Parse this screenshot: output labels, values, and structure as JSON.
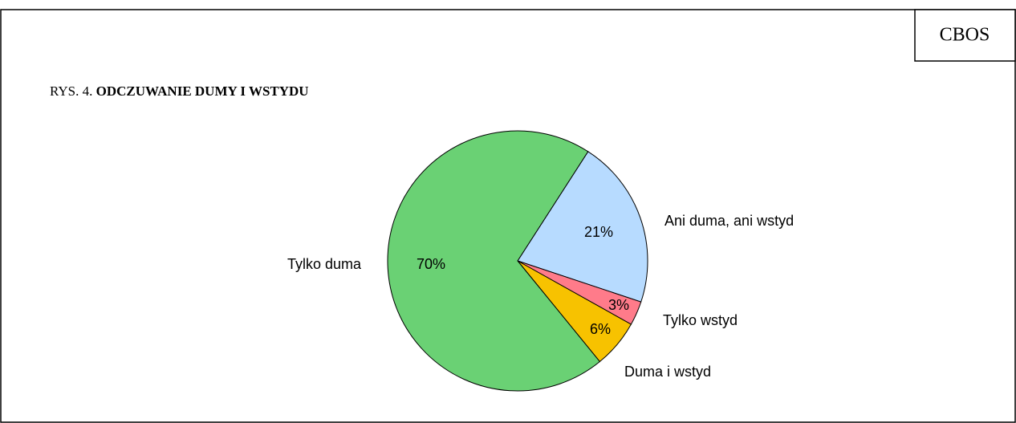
{
  "chart_data": {
    "type": "pie",
    "source": "CBOS",
    "title_prefix": "RYS. 4.",
    "title": "ODCZUWANIE DUMY I WSTYDU",
    "categories": [
      "Ani duma, ani wstyd",
      "Tylko wstyd",
      "Duma i wstyd",
      "Tylko duma"
    ],
    "values": [
      21,
      3,
      6,
      70
    ],
    "value_labels": [
      "21%",
      "3%",
      "6%",
      "70%"
    ],
    "colors": [
      "#b7dbff",
      "#ff7b8a",
      "#f7c200",
      "#6ad174"
    ]
  }
}
